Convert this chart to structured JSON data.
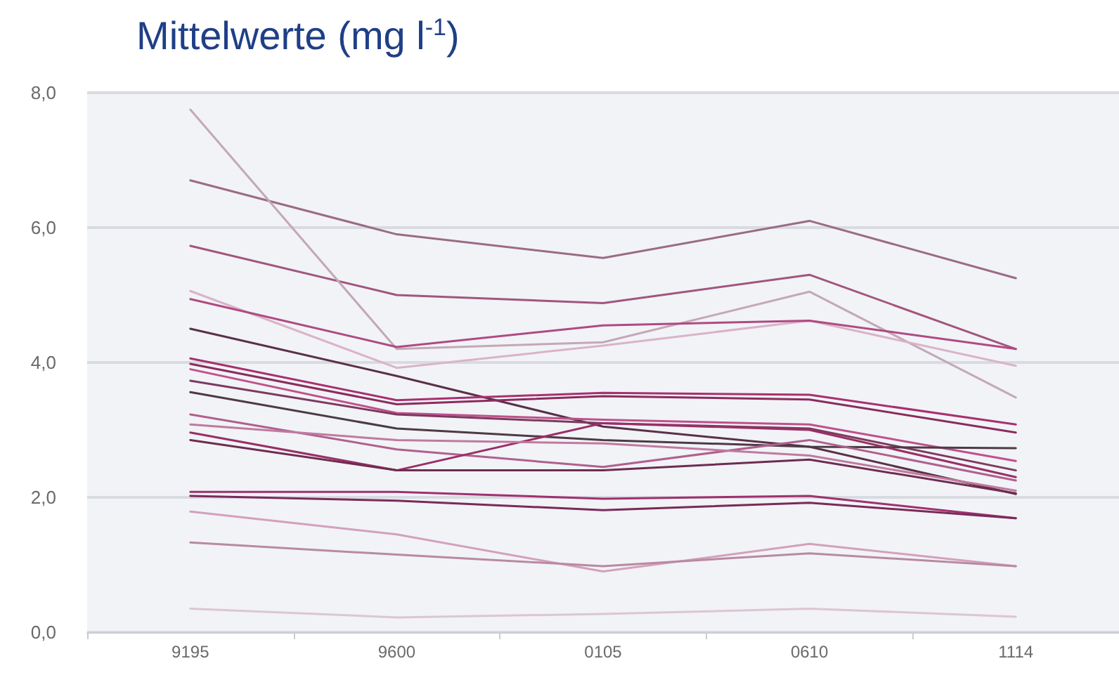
{
  "chart_data": {
    "type": "line",
    "title": "Mittelwerte (mg l$^{-1}$)",
    "categories": [
      "9195",
      "9600",
      "0105",
      "0610",
      "1114"
    ],
    "ylim": [
      0,
      8
    ],
    "yticks": [
      {
        "value": 0,
        "label": "0,0"
      },
      {
        "value": 2,
        "label": "2,0"
      },
      {
        "value": 4,
        "label": "4,0"
      },
      {
        "value": 6,
        "label": "6,0"
      },
      {
        "value": 8,
        "label": "8,0"
      }
    ],
    "grid": "y",
    "marker": "none",
    "line_style": "solid",
    "series": [
      {
        "color": "#9b6b84",
        "values": [
          6.7,
          5.9,
          5.55,
          6.1,
          5.25
        ]
      },
      {
        "color": "#a2557e",
        "values": [
          5.73,
          5.0,
          4.88,
          5.3,
          4.2
        ]
      },
      {
        "color": "#c4a8b6",
        "values": [
          7.75,
          4.2,
          4.3,
          5.05,
          3.48
        ]
      },
      {
        "color": "#dbb3c8",
        "values": [
          5.06,
          3.92,
          4.25,
          4.62,
          3.95
        ]
      },
      {
        "color": "#b04a82",
        "values": [
          4.94,
          4.23,
          4.55,
          4.62,
          4.2
        ]
      },
      {
        "color": "#5a3048",
        "values": [
          4.5,
          3.8,
          3.05,
          2.75,
          2.05
        ]
      },
      {
        "color": "#a8306e",
        "values": [
          4.06,
          3.44,
          3.55,
          3.52,
          3.08
        ]
      },
      {
        "color": "#8a2c5c",
        "values": [
          3.98,
          3.38,
          3.5,
          3.45,
          2.96
        ]
      },
      {
        "color": "#c0508c",
        "values": [
          3.9,
          3.25,
          3.15,
          3.08,
          2.54
        ]
      },
      {
        "color": "#7d3a5e",
        "values": [
          3.73,
          3.23,
          3.1,
          3.02,
          2.4
        ]
      },
      {
        "color": "#4e3a44",
        "values": [
          3.56,
          3.02,
          2.85,
          2.75,
          2.73
        ]
      },
      {
        "color": "#b0608e",
        "values": [
          3.23,
          2.71,
          2.45,
          2.85,
          2.25
        ]
      },
      {
        "color": "#9a2f66",
        "values": [
          2.96,
          2.4,
          3.1,
          3.0,
          2.3
        ]
      },
      {
        "color": "#6e2c50",
        "values": [
          2.85,
          2.4,
          2.4,
          2.56,
          2.06
        ]
      },
      {
        "color": "#c07aa0",
        "values": [
          3.08,
          2.85,
          2.8,
          2.62,
          2.1
        ]
      },
      {
        "color": "#a03070",
        "values": [
          2.08,
          2.08,
          1.98,
          2.02,
          1.69
        ]
      },
      {
        "color": "#7a2a58",
        "values": [
          2.02,
          1.95,
          1.81,
          1.92,
          1.69
        ]
      },
      {
        "color": "#d4a0bc",
        "values": [
          1.79,
          1.45,
          0.9,
          1.31,
          0.98
        ]
      },
      {
        "color": "#b88aa2",
        "values": [
          1.33,
          1.15,
          0.98,
          1.17,
          0.98
        ]
      },
      {
        "color": "#dcc6d2",
        "values": [
          0.35,
          0.22,
          0.27,
          0.35,
          0.23
        ]
      }
    ]
  }
}
